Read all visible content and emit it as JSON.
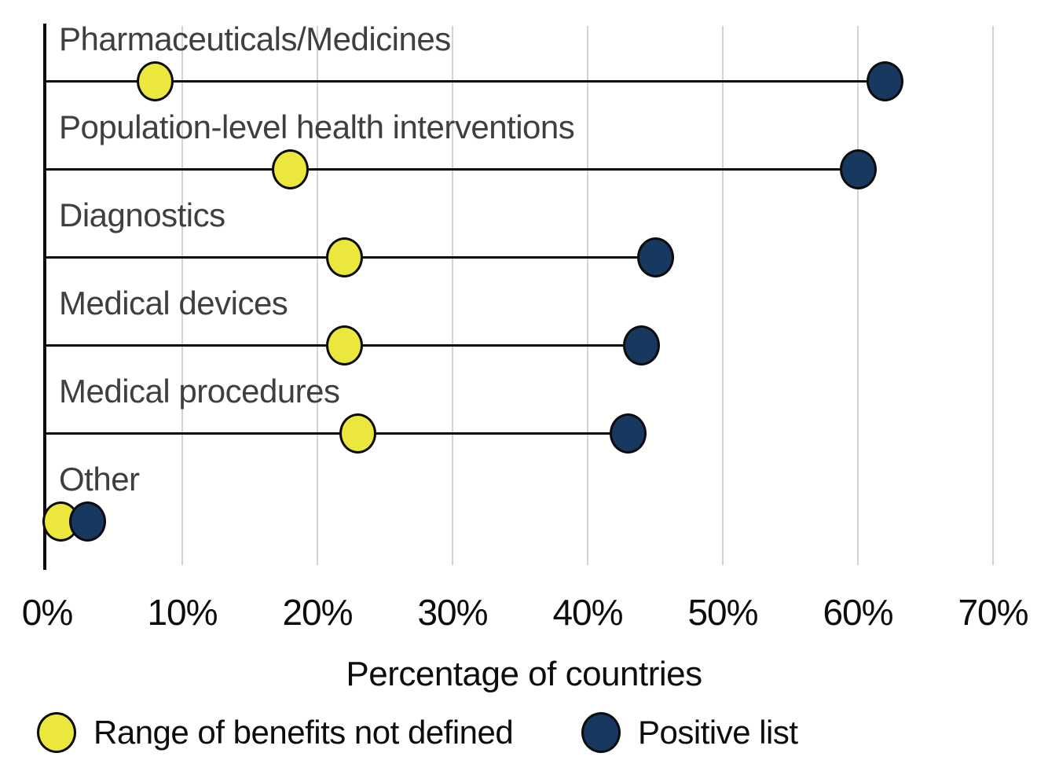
{
  "chart_data": {
    "type": "scatter",
    "variant": "dumbbell-lollipop",
    "orientation": "horizontal",
    "categories": [
      "Pharmaceuticals/Medicines",
      "Population-level health interventions",
      "Diagnostics",
      "Medical devices",
      "Medical procedures",
      "Other"
    ],
    "series": [
      {
        "name": "Range of benefits not defined",
        "color": "#ece73c",
        "values": [
          8,
          18,
          22,
          22,
          23,
          1
        ]
      },
      {
        "name": "Positive list",
        "color": "#17395f",
        "values": [
          62,
          60,
          45,
          44,
          43,
          3
        ]
      }
    ],
    "title": "",
    "xlabel": "Percentage of countries",
    "ylabel": "",
    "xlim": [
      0,
      70
    ],
    "x_tick_labels": [
      "0%",
      "10%",
      "20%",
      "30%",
      "40%",
      "50%",
      "60%",
      "70%"
    ],
    "x_tick_values": [
      0,
      10,
      20,
      30,
      40,
      50,
      60,
      70
    ],
    "grid": "vertical-only",
    "legend_position": "bottom",
    "connector": "black line from y-axis to Positive list dot"
  },
  "colors": {
    "background": "#ffffff",
    "gridline": "#d3d3d3",
    "axis": "#0d0d0d",
    "category_text": "#3f3f3f",
    "tick_text": "#0d0d0d",
    "series_yellow": "#ece73c",
    "series_navy": "#17395f"
  }
}
